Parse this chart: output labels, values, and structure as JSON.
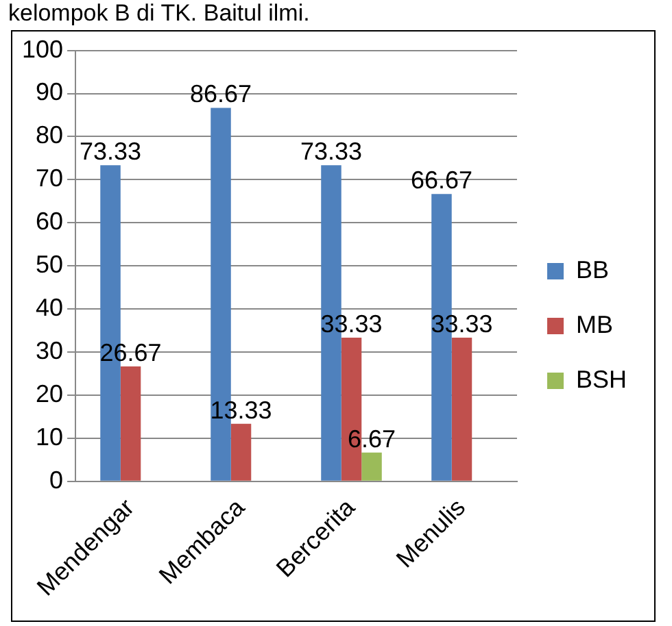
{
  "chart_data": {
    "type": "bar",
    "title": "kelompok B di TK. Baitul ilmi.",
    "categories": [
      "Mendengar",
      "Membaca",
      "Bercerita",
      "Menulis"
    ],
    "series": [
      {
        "name": "BB",
        "color": "#4f81bd",
        "values": [
          73.33,
          86.67,
          73.33,
          66.67
        ],
        "value_labels": [
          "73.33",
          "86.67",
          "73.33",
          "66.67"
        ]
      },
      {
        "name": "MB",
        "color": "#c0504d",
        "values": [
          26.67,
          13.33,
          33.33,
          33.33
        ],
        "value_labels": [
          "26.67",
          "13.33",
          "33.33",
          "33.33"
        ]
      },
      {
        "name": "BSH",
        "color": "#9bbb59",
        "values": [
          0,
          0,
          6.67,
          0
        ],
        "value_labels": [
          null,
          null,
          "6.67",
          null
        ]
      }
    ],
    "ylim": [
      0,
      100
    ],
    "yticks": [
      0,
      10,
      20,
      30,
      40,
      50,
      60,
      70,
      80,
      90,
      100
    ],
    "grid": "y",
    "legend": "right"
  }
}
